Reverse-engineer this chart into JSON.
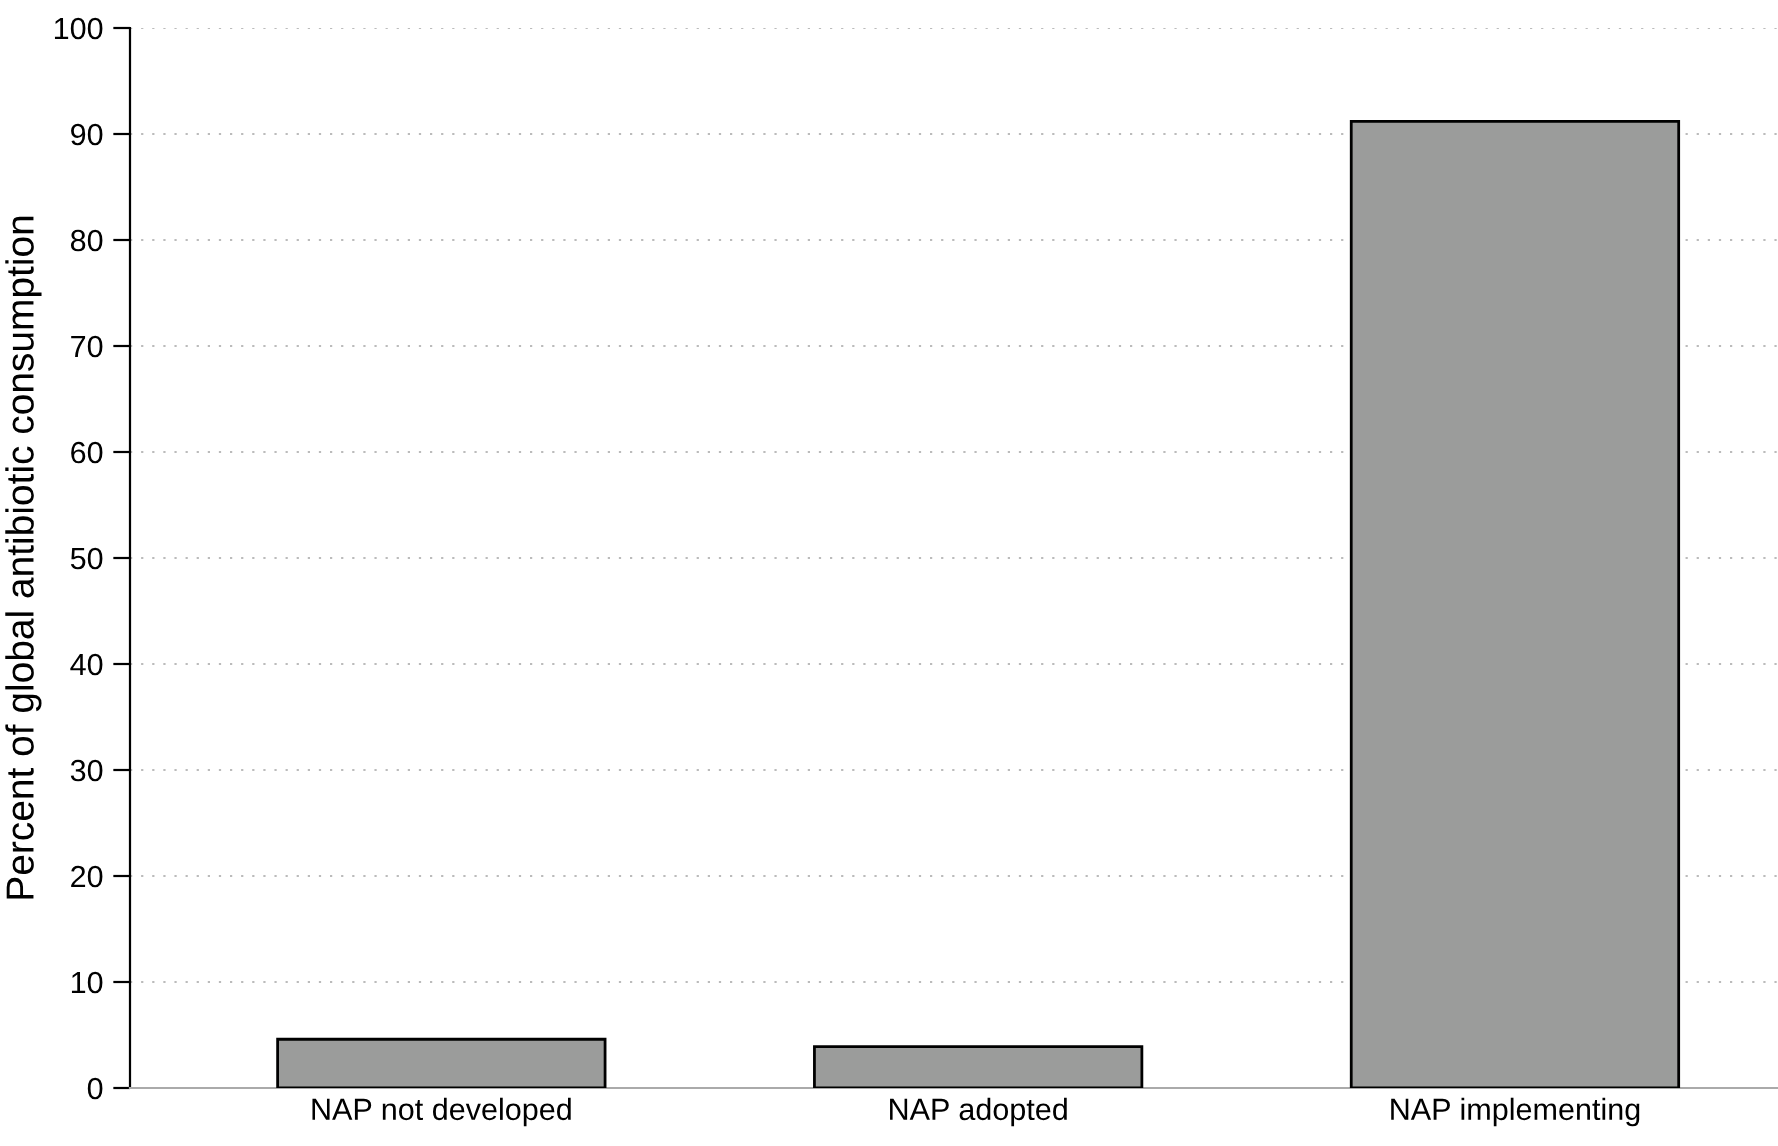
{
  "chart_data": {
    "type": "bar",
    "ylabel": "Percent of global antibiotic consumption",
    "categories": [
      "NAP not developed",
      "NAP adopted",
      "NAP implementing"
    ],
    "values": [
      4.6,
      3.9,
      91.2
    ],
    "color": "#9b9c9b",
    "ylim": [
      0,
      100
    ],
    "yticks": [
      0,
      10,
      20,
      30,
      40,
      50,
      60,
      70,
      80,
      90,
      100
    ],
    "grid": "y",
    "legend": false
  }
}
